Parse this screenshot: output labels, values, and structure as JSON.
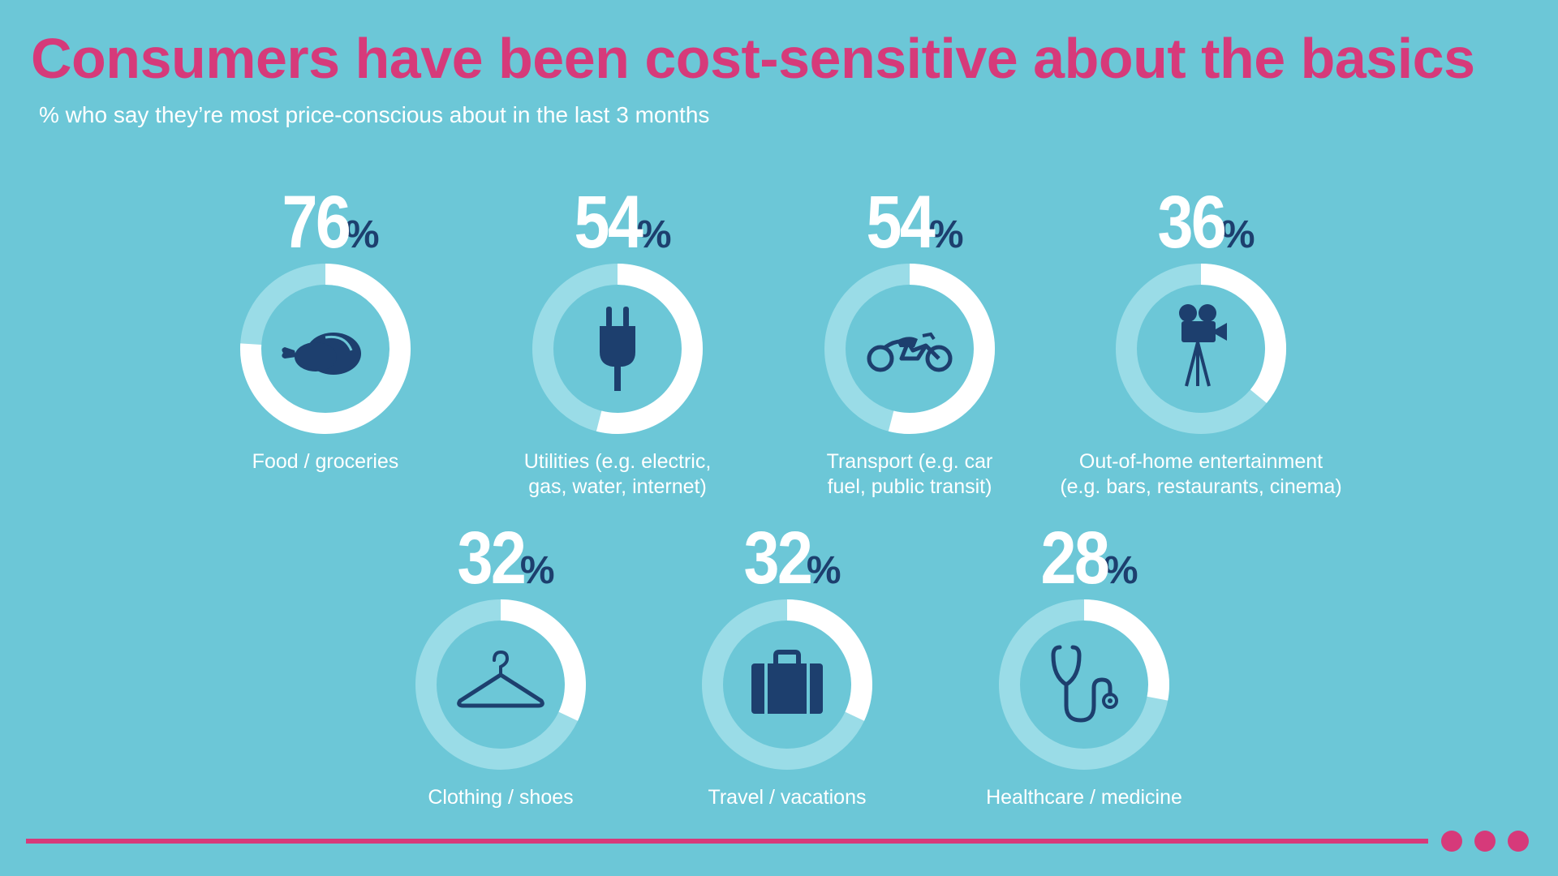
{
  "title": "Consumers have been cost-sensitive about the basics",
  "subtitle": "% who say they’re most price-conscious about in the last 3 months",
  "colors": {
    "background": "#6CC7D7",
    "accent": "#D63A7A",
    "ring_fill": "#FFFFFF",
    "ring_track": "#9ADCE7",
    "icon": "#1D3F6E"
  },
  "chart_data": {
    "type": "donut-grid",
    "title": "Consumers have been cost-sensitive about the basics",
    "subtitle": "% who say they’re most price-conscious about in the last 3 months",
    "unit": "%",
    "categories": [
      "Food / groceries",
      "Utilities (e.g. electric, gas, water, internet)",
      "Transport (e.g. car fuel, public transit)",
      "Out-of-home entertainment (e.g. bars, restaurants, cinema)",
      "Clothing / shoes",
      "Travel / vacations",
      "Healthcare / medicine"
    ],
    "values": [
      76,
      54,
      54,
      36,
      32,
      32,
      28
    ],
    "items": [
      {
        "value": 76,
        "value_label": "76",
        "pct": "%",
        "label": "Food / groceries",
        "icon": "roast-chicken-icon"
      },
      {
        "value": 54,
        "value_label": "54",
        "pct": "%",
        "label": "Utilities (e.g. electric,\ngas, water, internet)",
        "icon": "plug-icon"
      },
      {
        "value": 54,
        "value_label": "54",
        "pct": "%",
        "label": "Transport (e.g. car\nfuel, public transit)",
        "icon": "motorcycle-icon"
      },
      {
        "value": 36,
        "value_label": "36",
        "pct": "%",
        "label": "Out-of-home entertainment\n(e.g. bars, restaurants, cinema)",
        "icon": "movie-camera-icon"
      },
      {
        "value": 32,
        "value_label": "32",
        "pct": "%",
        "label": "Clothing / shoes",
        "icon": "hanger-icon"
      },
      {
        "value": 32,
        "value_label": "32",
        "pct": "%",
        "label": "Travel / vacations",
        "icon": "suitcase-icon"
      },
      {
        "value": 28,
        "value_label": "28",
        "pct": "%",
        "label": "Healthcare / medicine",
        "icon": "stethoscope-icon"
      }
    ]
  }
}
